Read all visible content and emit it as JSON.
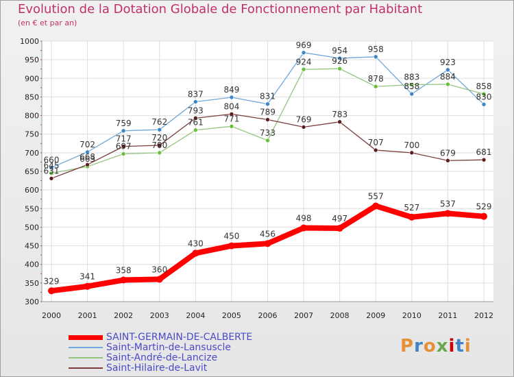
{
  "header": {
    "title": "Evolution de la Dotation Globale de Fonctionnement par Habitant",
    "subtitle": "(en € et par an)"
  },
  "logo": {
    "text": "Proxiti"
  },
  "chart_data": {
    "type": "line",
    "title": "Evolution de la Dotation Globale de Fonctionnement par Habitant",
    "subtitle": "(en € et par an)",
    "xlabel": "",
    "ylabel": "",
    "x": [
      "2000",
      "2001",
      "2002",
      "2003",
      "2004",
      "2005",
      "2006",
      "2007",
      "2008",
      "2009",
      "2010",
      "2011",
      "2012"
    ],
    "ylim": [
      300,
      1000
    ],
    "yticks": [
      300,
      350,
      400,
      450,
      500,
      550,
      600,
      650,
      700,
      750,
      800,
      850,
      900,
      950,
      1000
    ],
    "grid": true,
    "legend_position": "bottom-left",
    "series": [
      {
        "name": "SAINT-GERMAIN-DE-CALBERTE",
        "color": "#ff0000",
        "values": [
          329,
          341,
          358,
          360,
          430,
          450,
          456,
          498,
          497,
          557,
          527,
          537,
          529
        ]
      },
      {
        "name": "Saint-Martin-de-Lansuscle",
        "color": "#6fa8dc",
        "marker_color": "#3d85c6",
        "values": [
          660,
          702,
          759,
          762,
          837,
          849,
          831,
          969,
          954,
          958,
          858,
          923,
          830
        ]
      },
      {
        "name": "Saint-André-de-Lancize",
        "color": "#93c47d",
        "marker_color": "#6abf3a",
        "values": [
          645,
          663,
          697,
          700,
          761,
          771,
          733,
          924,
          926,
          878,
          883,
          884,
          858
        ]
      },
      {
        "name": "Saint-Hilaire-de-Lavit",
        "color": "#7b3b3b",
        "marker_color": "#5b1f1f",
        "values": [
          631,
          668,
          717,
          720,
          793,
          804,
          789,
          769,
          783,
          707,
          700,
          679,
          681
        ]
      }
    ]
  }
}
